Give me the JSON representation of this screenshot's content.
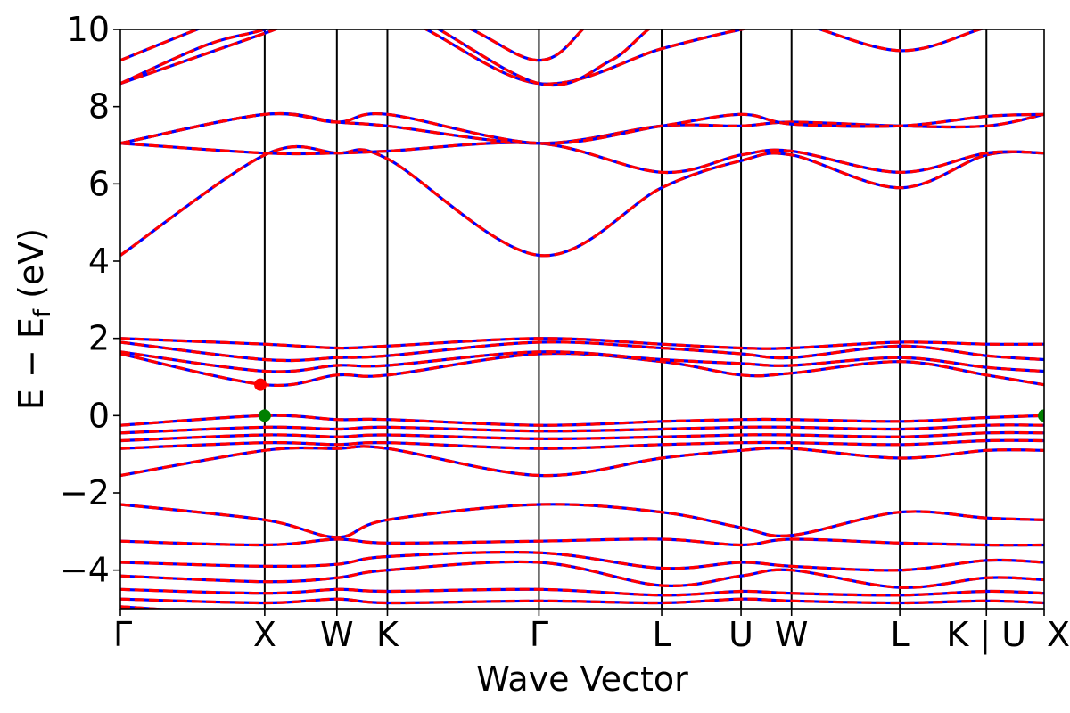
{
  "chart_data": {
    "type": "line",
    "xlabel": "Wave Vector",
    "ylabel": "E − E",
    "ylabel_sub": "f",
    "ylabel_unit": " (eV)",
    "ylim": [
      -5,
      10
    ],
    "yticks": [
      -4,
      -2,
      0,
      2,
      4,
      6,
      8,
      10
    ],
    "ytick_labels": [
      "−4",
      "−2",
      "0",
      "2",
      "4",
      "6",
      "8",
      "10"
    ],
    "grid": false,
    "legend": "none",
    "kpath": {
      "positions": [
        0,
        1.0,
        1.5,
        1.85,
        2.9,
        3.75,
        4.3,
        4.65,
        5.4,
        6.0,
        6.4
      ],
      "labels": [
        "Γ",
        "X",
        "W",
        "K",
        "Γ",
        "L",
        "U",
        "W",
        "L",
        "K | U",
        "X"
      ]
    },
    "colors": {
      "band_primary": "#0000ff",
      "band_secondary": "#ff0000",
      "vbm": "#008000",
      "cbm": "#ff0000",
      "kline": "#000000"
    },
    "markers": [
      {
        "name": "VBM",
        "points": [
          [
            1.0,
            0.0
          ],
          [
            6.4,
            0.0
          ]
        ]
      },
      {
        "name": "CBM",
        "points": [
          [
            0.97,
            0.8
          ]
        ]
      }
    ],
    "bands": [
      [
        [
          0,
          -4.95
        ],
        [
          1.0,
          -5.2
        ]
      ],
      [
        [
          0,
          -4.75
        ],
        [
          1.0,
          -4.85
        ],
        [
          1.5,
          -4.75
        ],
        [
          1.85,
          -4.85
        ],
        [
          2.9,
          -4.8
        ],
        [
          3.75,
          -4.85
        ],
        [
          4.3,
          -4.75
        ],
        [
          4.65,
          -4.8
        ],
        [
          5.4,
          -4.85
        ],
        [
          6.0,
          -4.8
        ],
        [
          6.4,
          -4.85
        ]
      ],
      [
        [
          0,
          -4.5
        ],
        [
          1.0,
          -4.6
        ],
        [
          1.5,
          -4.5
        ],
        [
          1.85,
          -4.55
        ],
        [
          2.9,
          -4.5
        ],
        [
          3.75,
          -4.65
        ],
        [
          4.3,
          -4.55
        ],
        [
          4.65,
          -4.6
        ],
        [
          5.4,
          -4.65
        ],
        [
          6.0,
          -4.55
        ],
        [
          6.4,
          -4.6
        ]
      ],
      [
        [
          0,
          -4.15
        ],
        [
          1.0,
          -4.3
        ],
        [
          1.5,
          -4.2
        ],
        [
          1.85,
          -4.0
        ],
        [
          2.9,
          -3.8
        ],
        [
          3.75,
          -4.4
        ],
        [
          4.3,
          -4.15
        ],
        [
          4.65,
          -4.0
        ],
        [
          5.4,
          -4.45
        ],
        [
          6.0,
          -4.2
        ],
        [
          6.4,
          -4.25
        ]
      ],
      [
        [
          0,
          -3.8
        ],
        [
          1.0,
          -3.9
        ],
        [
          1.5,
          -3.85
        ],
        [
          1.85,
          -3.65
        ],
        [
          2.9,
          -3.55
        ],
        [
          3.75,
          -3.95
        ],
        [
          4.3,
          -3.8
        ],
        [
          4.65,
          -3.9
        ],
        [
          5.4,
          -4.0
        ],
        [
          6.0,
          -3.75
        ],
        [
          6.4,
          -3.8
        ]
      ],
      [
        [
          0,
          -3.25
        ],
        [
          1.0,
          -3.35
        ],
        [
          1.5,
          -3.2
        ],
        [
          1.85,
          -3.3
        ],
        [
          2.9,
          -3.25
        ],
        [
          3.75,
          -3.2
        ],
        [
          4.3,
          -3.35
        ],
        [
          4.65,
          -3.2
        ],
        [
          5.4,
          -3.3
        ],
        [
          6.0,
          -3.35
        ],
        [
          6.4,
          -3.35
        ]
      ],
      [
        [
          0,
          -2.3
        ],
        [
          1.0,
          -2.7
        ],
        [
          1.5,
          -3.15
        ],
        [
          1.85,
          -2.7
        ],
        [
          2.9,
          -2.3
        ],
        [
          3.75,
          -2.5
        ],
        [
          4.3,
          -2.9
        ],
        [
          4.65,
          -3.1
        ],
        [
          5.4,
          -2.5
        ],
        [
          6.0,
          -2.65
        ],
        [
          6.4,
          -2.7
        ]
      ],
      [
        [
          0,
          -1.55
        ],
        [
          1.0,
          -0.9
        ],
        [
          1.5,
          -0.85
        ],
        [
          1.85,
          -0.85
        ],
        [
          2.9,
          -1.55
        ],
        [
          3.75,
          -1.1
        ],
        [
          4.3,
          -0.9
        ],
        [
          4.65,
          -0.85
        ],
        [
          5.4,
          -1.1
        ],
        [
          6.0,
          -0.9
        ],
        [
          6.4,
          -0.9
        ]
      ],
      [
        [
          0,
          -0.85
        ],
        [
          1.0,
          -0.7
        ],
        [
          1.5,
          -0.75
        ],
        [
          1.85,
          -0.7
        ],
        [
          2.9,
          -0.85
        ],
        [
          3.75,
          -0.75
        ],
        [
          4.3,
          -0.7
        ],
        [
          4.65,
          -0.7
        ],
        [
          5.4,
          -0.75
        ],
        [
          6.0,
          -0.65
        ],
        [
          6.4,
          -0.65
        ]
      ],
      [
        [
          0,
          -0.65
        ],
        [
          1.0,
          -0.5
        ],
        [
          1.5,
          -0.55
        ],
        [
          1.85,
          -0.5
        ],
        [
          2.9,
          -0.6
        ],
        [
          3.75,
          -0.55
        ],
        [
          4.3,
          -0.5
        ],
        [
          4.65,
          -0.5
        ],
        [
          5.4,
          -0.55
        ],
        [
          6.0,
          -0.45
        ],
        [
          6.4,
          -0.45
        ]
      ],
      [
        [
          0,
          -0.45
        ],
        [
          1.0,
          -0.3
        ],
        [
          1.5,
          -0.35
        ],
        [
          1.85,
          -0.3
        ],
        [
          2.9,
          -0.4
        ],
        [
          3.75,
          -0.35
        ],
        [
          4.3,
          -0.3
        ],
        [
          4.65,
          -0.3
        ],
        [
          5.4,
          -0.35
        ],
        [
          6.0,
          -0.25
        ],
        [
          6.4,
          -0.25
        ]
      ],
      [
        [
          0,
          -0.25
        ],
        [
          1.0,
          0.0
        ],
        [
          1.5,
          -0.1
        ],
        [
          1.85,
          -0.1
        ],
        [
          2.9,
          -0.25
        ],
        [
          3.75,
          -0.15
        ],
        [
          4.3,
          -0.1
        ],
        [
          4.65,
          -0.1
        ],
        [
          5.4,
          -0.15
        ],
        [
          6.0,
          -0.05
        ],
        [
          6.4,
          0.0
        ]
      ],
      [
        [
          0,
          1.6
        ],
        [
          1.0,
          0.8
        ],
        [
          1.5,
          1.05
        ],
        [
          1.85,
          1.05
        ],
        [
          2.9,
          1.6
        ],
        [
          3.75,
          1.4
        ],
        [
          4.3,
          1.05
        ],
        [
          4.65,
          1.1
        ],
        [
          5.4,
          1.4
        ],
        [
          6.0,
          1.05
        ],
        [
          6.4,
          0.8
        ]
      ],
      [
        [
          0,
          1.65
        ],
        [
          1.0,
          1.15
        ],
        [
          1.5,
          1.3
        ],
        [
          1.85,
          1.3
        ],
        [
          2.9,
          1.65
        ],
        [
          3.75,
          1.45
        ],
        [
          4.3,
          1.35
        ],
        [
          4.65,
          1.3
        ],
        [
          5.4,
          1.5
        ],
        [
          6.0,
          1.25
        ],
        [
          6.4,
          1.15
        ]
      ],
      [
        [
          0,
          1.9
        ],
        [
          1.0,
          1.45
        ],
        [
          1.5,
          1.5
        ],
        [
          1.85,
          1.55
        ],
        [
          2.9,
          1.9
        ],
        [
          3.75,
          1.75
        ],
        [
          4.3,
          1.6
        ],
        [
          4.65,
          1.5
        ],
        [
          5.4,
          1.8
        ],
        [
          6.0,
          1.55
        ],
        [
          6.4,
          1.45
        ]
      ],
      [
        [
          0,
          2.0
        ],
        [
          1.0,
          1.85
        ],
        [
          1.5,
          1.75
        ],
        [
          1.85,
          1.8
        ],
        [
          2.9,
          2.0
        ],
        [
          3.75,
          1.85
        ],
        [
          4.3,
          1.75
        ],
        [
          4.65,
          1.75
        ],
        [
          5.4,
          1.9
        ],
        [
          6.0,
          1.85
        ],
        [
          6.4,
          1.85
        ]
      ],
      [
        [
          0,
          4.15
        ],
        [
          1.0,
          6.75
        ],
        [
          1.5,
          6.8
        ],
        [
          1.85,
          6.65
        ],
        [
          2.9,
          4.15
        ],
        [
          3.75,
          5.9
        ],
        [
          4.3,
          6.6
        ],
        [
          4.65,
          6.75
        ],
        [
          5.4,
          5.9
        ],
        [
          6.0,
          6.75
        ],
        [
          6.4,
          6.8
        ]
      ],
      [
        [
          0,
          7.05
        ],
        [
          1.0,
          6.8
        ],
        [
          1.5,
          6.8
        ],
        [
          1.85,
          6.85
        ],
        [
          2.9,
          7.05
        ],
        [
          3.75,
          6.3
        ],
        [
          4.3,
          6.75
        ],
        [
          4.65,
          6.85
        ],
        [
          5.4,
          6.3
        ],
        [
          6.0,
          6.8
        ],
        [
          6.4,
          6.8
        ]
      ],
      [
        [
          0,
          7.05
        ],
        [
          1.0,
          7.8
        ],
        [
          1.5,
          7.6
        ],
        [
          1.85,
          7.5
        ],
        [
          2.9,
          7.05
        ],
        [
          3.75,
          7.5
        ],
        [
          4.3,
          7.5
        ],
        [
          4.65,
          7.6
        ],
        [
          5.4,
          7.5
        ],
        [
          6.0,
          7.5
        ],
        [
          6.4,
          7.8
        ]
      ],
      [
        [
          0,
          7.05
        ],
        [
          1.0,
          7.8
        ],
        [
          1.5,
          7.6
        ],
        [
          1.85,
          7.8
        ],
        [
          2.9,
          7.05
        ],
        [
          3.75,
          7.5
        ],
        [
          4.3,
          7.8
        ],
        [
          4.65,
          7.55
        ],
        [
          5.4,
          7.5
        ],
        [
          6.0,
          7.75
        ],
        [
          6.4,
          7.8
        ]
      ],
      [
        [
          0,
          8.6
        ],
        [
          1.0,
          9.9
        ],
        [
          1.45,
          10.5
        ],
        [
          2.0,
          10.2
        ],
        [
          2.9,
          8.6
        ],
        [
          3.75,
          9.5
        ],
        [
          4.3,
          10.0
        ],
        [
          4.65,
          10.2
        ],
        [
          5.4,
          9.45
        ],
        [
          6.0,
          10.05
        ],
        [
          6.4,
          10.3
        ]
      ],
      [
        [
          0,
          8.6
        ],
        [
          0.6,
          9.6
        ],
        [
          1.0,
          10.0
        ],
        [
          1.5,
          10.6
        ],
        [
          2.0,
          10.4
        ],
        [
          2.9,
          8.6
        ],
        [
          3.4,
          9.2
        ],
        [
          3.75,
          10.2
        ],
        [
          4.3,
          10.6
        ],
        [
          5.4,
          10.3
        ],
        [
          6.4,
          10.6
        ]
      ],
      [
        [
          0,
          9.2
        ],
        [
          0.6,
          10.1
        ],
        [
          1.0,
          10.6
        ],
        [
          2.2,
          10.3
        ],
        [
          2.9,
          9.2
        ],
        [
          3.3,
          10.3
        ],
        [
          3.75,
          10.9
        ],
        [
          4.6,
          10.5
        ],
        [
          5.4,
          10.6
        ],
        [
          6.4,
          10.9
        ]
      ]
    ]
  }
}
